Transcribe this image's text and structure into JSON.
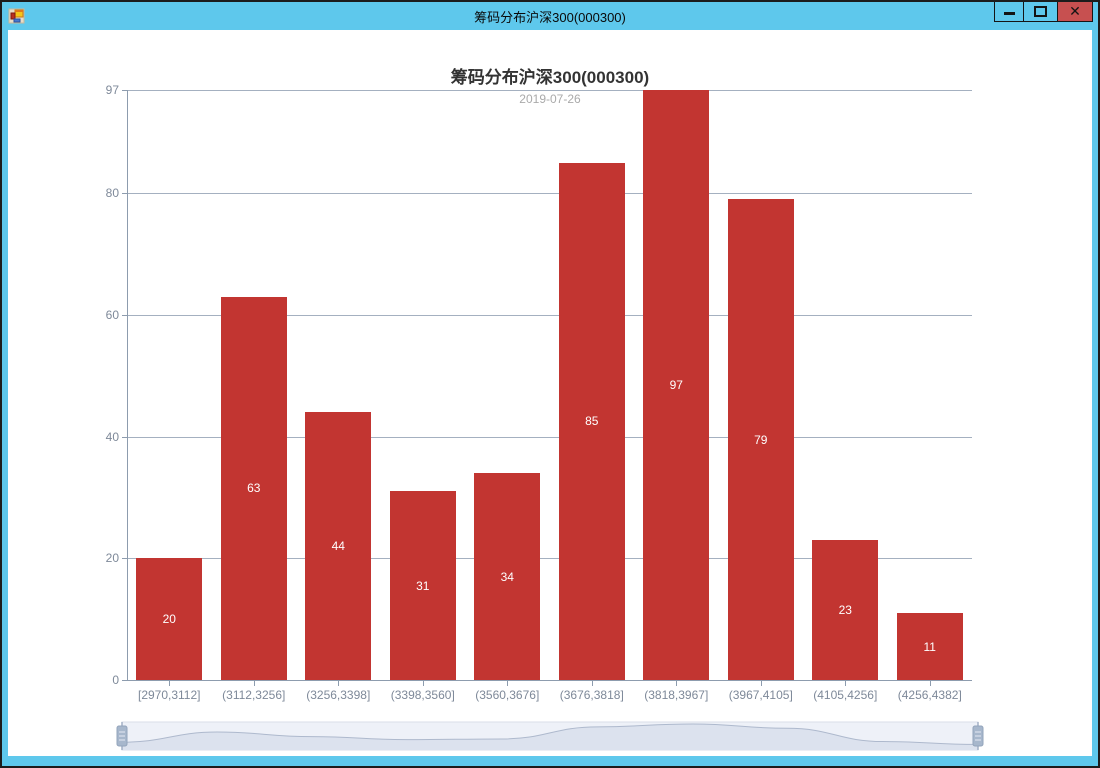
{
  "window": {
    "title": "筹码分布沪深300(000300)",
    "icon": "winforms-app-icon",
    "controls": {
      "minimize_label": "minimize",
      "maximize_label": "maximize",
      "close_label": "close",
      "close_glyph": "✕"
    },
    "titlebar_color": "#5ec8ec",
    "close_button_color": "#c75050"
  },
  "chart_data": {
    "type": "bar",
    "title": "筹码分布沪深300(000300)",
    "subtitle": "2019-07-26",
    "categories": [
      "[2970,3112]",
      "(3112,3256]",
      "(3256,3398]",
      "(3398,3560]",
      "(3560,3676]",
      "(3676,3818]",
      "(3818,3967]",
      "(3967,4105]",
      "(4105,4256]",
      "(4256,4382]"
    ],
    "values": [
      20,
      63,
      44,
      31,
      34,
      85,
      97,
      79,
      23,
      11
    ],
    "xlabel": "",
    "ylabel": "",
    "ylim": [
      0,
      97
    ],
    "yticks": [
      0,
      20,
      40,
      60,
      80,
      97
    ],
    "grid": true,
    "legend": false,
    "bar_color": "#c23531",
    "bar_label_color": "#ffffff",
    "axis_color": "#8d9cae",
    "gridline_color": "#a4b0c0",
    "axis_label_color": "#7e8999",
    "datazoom": {
      "enabled": true,
      "range_start_pct": 0,
      "range_end_pct": 100,
      "handle_color": "#a7b7cc",
      "track_color": "#eef1f8",
      "shadow_line_color": "#aeb9cd",
      "shadow_area_color": "#dce2ee"
    }
  }
}
